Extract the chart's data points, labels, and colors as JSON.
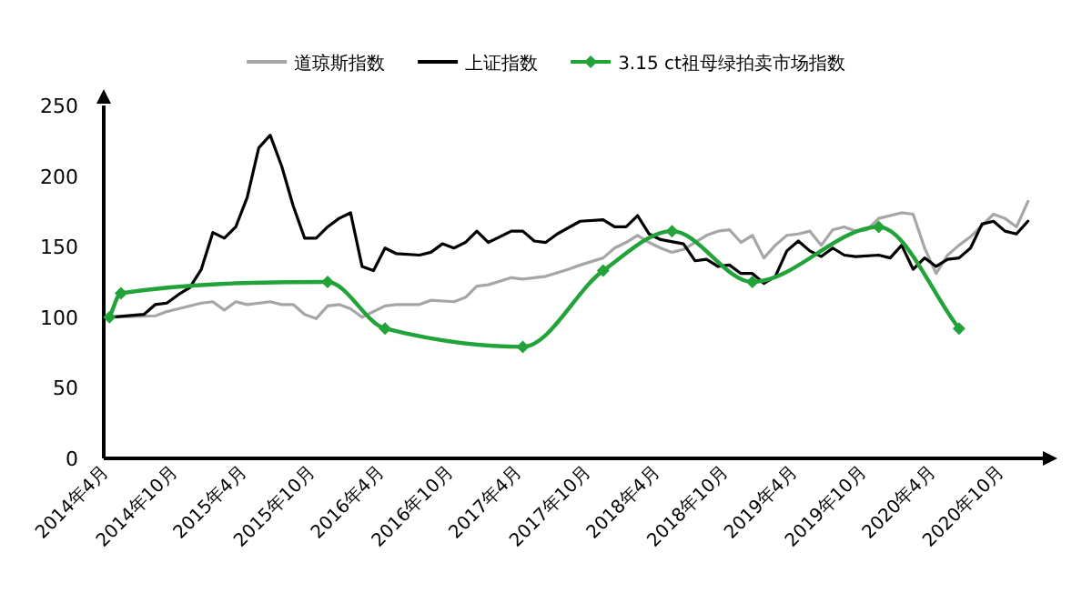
{
  "chart_data": {
    "type": "line",
    "legend": "top",
    "ylim": [
      0,
      250
    ],
    "yticks": [
      0,
      50,
      100,
      150,
      200,
      250
    ],
    "xlim": [
      "2014-03-16",
      "2021-01-10"
    ],
    "xticks": [
      {
        "value": "2014-04",
        "label": "2014年4月"
      },
      {
        "value": "2014-10",
        "label": "2014年10月"
      },
      {
        "value": "2015-04",
        "label": "2015年4月"
      },
      {
        "value": "2015-10",
        "label": "2015年10月"
      },
      {
        "value": "2016-04",
        "label": "2016年4月"
      },
      {
        "value": "2016-10",
        "label": "2016年10月"
      },
      {
        "value": "2017-04",
        "label": "2017年4月"
      },
      {
        "value": "2017-10",
        "label": "2017年10月"
      },
      {
        "value": "2018-04",
        "label": "2018年4月"
      },
      {
        "value": "2018-10",
        "label": "2018年10月"
      },
      {
        "value": "2019-04",
        "label": "2019年4月"
      },
      {
        "value": "2019-10",
        "label": "2019年10月"
      },
      {
        "value": "2020-04",
        "label": "2020年4月"
      },
      {
        "value": "2020-10",
        "label": "2020年10月"
      }
    ],
    "series": [
      {
        "name": "道琼斯指数",
        "color": "#a6a6a6",
        "marker": "none",
        "x": [
          "2014-04",
          "2014-08",
          "2014-09",
          "2014-10",
          "2014-12",
          "2015-01",
          "2015-02",
          "2015-03",
          "2015-04",
          "2015-06",
          "2015-07",
          "2015-08",
          "2015-09",
          "2015-10",
          "2015-11",
          "2015-12",
          "2016-01",
          "2016-02",
          "2016-04",
          "2016-05",
          "2016-07",
          "2016-08",
          "2016-10",
          "2016-11",
          "2016-12",
          "2017-01",
          "2017-03",
          "2017-04",
          "2017-05",
          "2017-06",
          "2017-08",
          "2017-09",
          "2017-11",
          "2017-12",
          "2018-01",
          "2018-02",
          "2018-03",
          "2018-04",
          "2018-05",
          "2018-06",
          "2018-07",
          "2018-08",
          "2018-09",
          "2018-10",
          "2018-11",
          "2018-12",
          "2019-01",
          "2019-02",
          "2019-03",
          "2019-04",
          "2019-05",
          "2019-06",
          "2019-07",
          "2019-08",
          "2019-09",
          "2019-10",
          "2019-11",
          "2020-01",
          "2020-02",
          "2020-03",
          "2020-04",
          "2020-05",
          "2020-06",
          "2020-07",
          "2020-09",
          "2020-10",
          "2020-11",
          "2020-12"
        ],
        "values": [
          100,
          101,
          104,
          106,
          110,
          111,
          105,
          111,
          109,
          111,
          109,
          109,
          102,
          99,
          108,
          109,
          106,
          100,
          108,
          109,
          109,
          112,
          111,
          114,
          122,
          123,
          128,
          127,
          128,
          129,
          134,
          137,
          142,
          149,
          153,
          158,
          153,
          149,
          146,
          148,
          153,
          158,
          161,
          162,
          153,
          158,
          142,
          151,
          158,
          159,
          161,
          151,
          162,
          164,
          161,
          162,
          170,
          174,
          173,
          149,
          131,
          144,
          151,
          157,
          173,
          170,
          164,
          182
        ]
      },
      {
        "name": "上证指数",
        "color": "#000000",
        "marker": "none",
        "x": [
          "2014-04",
          "2014-07",
          "2014-08",
          "2014-09",
          "2014-10",
          "2014-11",
          "2014-12",
          "2015-01",
          "2015-02",
          "2015-03",
          "2015-04",
          "2015-05",
          "2015-06",
          "2015-07",
          "2015-08",
          "2015-09",
          "2015-10",
          "2015-11",
          "2015-12",
          "2016-01",
          "2016-02",
          "2016-03",
          "2016-04",
          "2016-05",
          "2016-07",
          "2016-08",
          "2016-09",
          "2016-10",
          "2016-11",
          "2016-12",
          "2017-01",
          "2017-02",
          "2017-03",
          "2017-04",
          "2017-05",
          "2017-06",
          "2017-07",
          "2017-09",
          "2017-11",
          "2017-12",
          "2018-01",
          "2018-02",
          "2018-03",
          "2018-04",
          "2018-06",
          "2018-07",
          "2018-08",
          "2018-09",
          "2018-10",
          "2018-11",
          "2018-12",
          "2019-01",
          "2019-02",
          "2019-03",
          "2019-04",
          "2019-05",
          "2019-06",
          "2019-07",
          "2019-08",
          "2019-09",
          "2019-11",
          "2019-12",
          "2020-01",
          "2020-02",
          "2020-03",
          "2020-04",
          "2020-05",
          "2020-06",
          "2020-07",
          "2020-08",
          "2020-09",
          "2020-10",
          "2020-11",
          "2020-12"
        ],
        "values": [
          100,
          102,
          109,
          110,
          116,
          121,
          134,
          160,
          156,
          164,
          185,
          220,
          229,
          207,
          179,
          156,
          156,
          164,
          170,
          174,
          136,
          133,
          149,
          145,
          144,
          146,
          152,
          149,
          153,
          161,
          153,
          157,
          161,
          161,
          154,
          153,
          159,
          168,
          169,
          164,
          164,
          172,
          159,
          155,
          152,
          140,
          141,
          136,
          137,
          131,
          131,
          124,
          129,
          147,
          154,
          147,
          143,
          149,
          144,
          143,
          144,
          142,
          151,
          134,
          142,
          136,
          141,
          142,
          149,
          166,
          168,
          161,
          159,
          168
        ]
      },
      {
        "name": "3.15 ct祖母绿拍卖市场指数",
        "color": "#22a33a",
        "marker": "diamond",
        "x": [
          "2014-04",
          "2014-05",
          "2015-11",
          "2016-04",
          "2017-04",
          "2017-11",
          "2018-05",
          "2018-12",
          "2019-11",
          "2020-06"
        ],
        "values": [
          100,
          117,
          125,
          92,
          79,
          133,
          161,
          125,
          164,
          92
        ]
      }
    ]
  }
}
